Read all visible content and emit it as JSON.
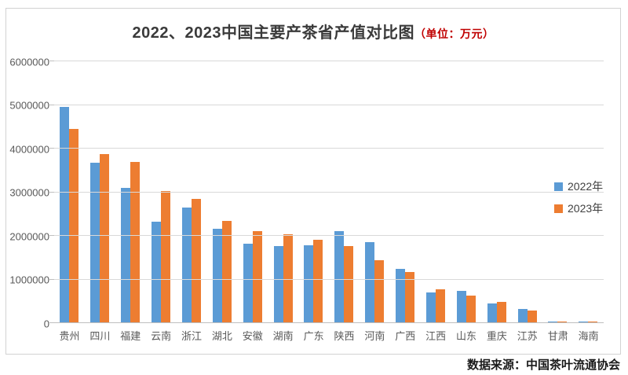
{
  "chart": {
    "title_main": "2022、2023中国主要产茶省产值对比图",
    "title_unit": "（单位：万元）",
    "footer_source": "数据来源：中国茶叶流通协会"
  },
  "chart_data": {
    "type": "bar",
    "title": "2022、2023中国主要产茶省产值对比图（单位：万元）",
    "unit": "万元",
    "categories": [
      "贵州",
      "四川",
      "福建",
      "云南",
      "浙江",
      "湖北",
      "安徽",
      "湖南",
      "广东",
      "陕西",
      "河南",
      "广西",
      "江西",
      "山东",
      "重庆",
      "江苏",
      "甘肃",
      "海南"
    ],
    "series": [
      {
        "name": "2022年",
        "color": "#5B9BD5",
        "values": [
          4960000,
          3670000,
          3100000,
          2320000,
          2640000,
          2170000,
          1820000,
          1770000,
          1780000,
          2110000,
          1860000,
          1250000,
          700000,
          740000,
          450000,
          320000,
          30000,
          30000
        ]
      },
      {
        "name": "2023年",
        "color": "#ED7D31",
        "values": [
          4450000,
          3870000,
          3690000,
          3020000,
          2850000,
          2340000,
          2110000,
          2030000,
          1910000,
          1760000,
          1450000,
          1180000,
          770000,
          630000,
          480000,
          290000,
          35000,
          30000
        ]
      }
    ],
    "xlabel": "",
    "ylabel": "",
    "ylim": [
      0,
      6000000
    ],
    "ytick_interval": 1000000,
    "ytick_labels": [
      "0",
      "1000000",
      "2000000",
      "3000000",
      "4000000",
      "5000000",
      "6000000"
    ],
    "grid": "horizontal",
    "legend_position": "right",
    "gridline_color": "#d9d9d9",
    "axis_label_color": "#595959"
  }
}
